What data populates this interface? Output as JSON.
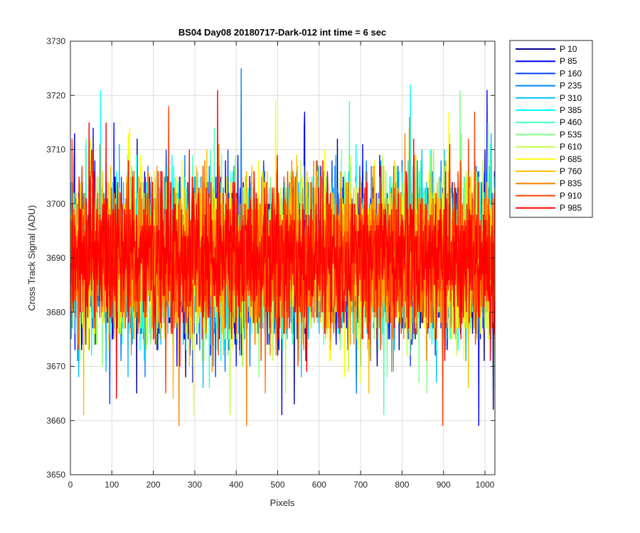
{
  "chart_data": {
    "type": "line",
    "title": "BS04 Day08 20180717-Dark-012 int time = 6 sec",
    "xlabel": "Pixels",
    "ylabel": "Cross Track Signal (ADU)",
    "xlim": [
      0,
      1024
    ],
    "ylim": [
      3650,
      3730
    ],
    "xticks": [
      "0",
      "100",
      "200",
      "300",
      "400",
      "500",
      "600",
      "700",
      "800",
      "900",
      "1000"
    ],
    "yticks": [
      "3650",
      "3660",
      "3670",
      "3680",
      "3690",
      "3700",
      "3710",
      "3720",
      "3730"
    ],
    "grid": true,
    "legend_position": "outside-top-right",
    "x_range": [
      1,
      1024
    ],
    "signal_mean": 3690,
    "signal_spread": 7,
    "series": [
      {
        "name": "P 10",
        "color": "#00008F",
        "spikes": [
          [
            110,
            3705
          ],
          [
            160,
            3665
          ],
          [
            540,
            3663
          ],
          [
            1000,
            3710
          ],
          [
            1020,
            3662
          ]
        ]
      },
      {
        "name": "P 85",
        "color": "#0000FF",
        "spikes": [
          [
            55,
            3714
          ],
          [
            105,
            3715
          ],
          [
            295,
            3667
          ],
          [
            510,
            3661
          ],
          [
            565,
            3717
          ],
          [
            985,
            3659
          ],
          [
            1005,
            3721
          ]
        ]
      },
      {
        "name": "P 160",
        "color": "#0040FF",
        "spikes": [
          [
            95,
            3663
          ],
          [
            350,
            3668
          ],
          [
            595,
            3708
          ],
          [
            880,
            3672
          ]
        ]
      },
      {
        "name": "P 235",
        "color": "#0080FF",
        "spikes": [
          [
            412,
            3725
          ],
          [
            180,
            3668
          ],
          [
            700,
            3670
          ]
        ]
      },
      {
        "name": "P 310",
        "color": "#00BFFF",
        "spikes": [
          [
            20,
            3668
          ],
          [
            320,
            3666
          ],
          [
            775,
            3669
          ],
          [
            1015,
            3713
          ]
        ]
      },
      {
        "name": "P 385",
        "color": "#00FFFF",
        "spikes": [
          [
            73,
            3721
          ],
          [
            820,
            3722
          ],
          [
            935,
            3673
          ]
        ]
      },
      {
        "name": "P 460",
        "color": "#40FFBF",
        "spikes": [
          [
            673,
            3719
          ],
          [
            380,
            3672
          ],
          [
            150,
            3680
          ]
        ]
      },
      {
        "name": "P 535",
        "color": "#80FF80",
        "spikes": [
          [
            455,
            3668
          ],
          [
            860,
            3665
          ],
          [
            940,
            3721
          ]
        ]
      },
      {
        "name": "P 610",
        "color": "#BFFF40",
        "spikes": [
          [
            385,
            3661
          ],
          [
            618,
            3702
          ],
          [
            915,
            3713
          ]
        ]
      },
      {
        "name": "P 685",
        "color": "#FFFF00",
        "spikes": [
          [
            297,
            3661
          ],
          [
            140,
            3713
          ],
          [
            495,
            3719
          ],
          [
            913,
            3717
          ]
        ]
      },
      {
        "name": "P 760",
        "color": "#FFBF00",
        "spikes": [
          [
            32,
            3661
          ],
          [
            248,
            3664
          ],
          [
            720,
            3665
          ],
          [
            960,
            3666
          ]
        ]
      },
      {
        "name": "P 835",
        "color": "#FF8000",
        "spikes": [
          [
            262,
            3659
          ],
          [
            425,
            3659
          ],
          [
            470,
            3665
          ],
          [
            818,
            3716
          ]
        ]
      },
      {
        "name": "P 910",
        "color": "#FF4000",
        "spikes": [
          [
            237,
            3718
          ],
          [
            230,
            3665
          ],
          [
            898,
            3659
          ],
          [
            975,
            3717
          ]
        ]
      },
      {
        "name": "P 985",
        "color": "#FF0000",
        "spikes": [
          [
            355,
            3721
          ],
          [
            45,
            3715
          ],
          [
            570,
            3669
          ],
          [
            740,
            3675
          ]
        ]
      }
    ]
  }
}
